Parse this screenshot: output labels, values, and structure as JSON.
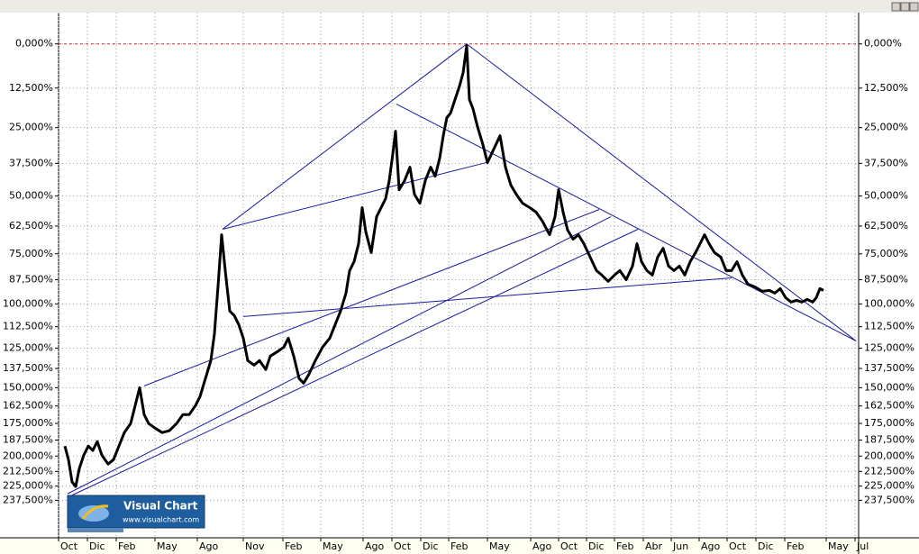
{
  "chart_data": {
    "type": "line",
    "log_y": true,
    "grid": true,
    "ylim": [
      -8,
      273
    ],
    "yticks": [
      {
        "value": 0,
        "label": "0,000%"
      },
      {
        "value": 12.5,
        "label": "12,500%"
      },
      {
        "value": 25,
        "label": "25,000%"
      },
      {
        "value": 37.5,
        "label": "37,500%"
      },
      {
        "value": 50,
        "label": "50,000%"
      },
      {
        "value": 62.5,
        "label": "62,500%"
      },
      {
        "value": 75,
        "label": "75,000%"
      },
      {
        "value": 87.5,
        "label": "87,500%"
      },
      {
        "value": 100,
        "label": "100,000%"
      },
      {
        "value": 112.5,
        "label": "112,500%"
      },
      {
        "value": 125,
        "label": "125,000%"
      },
      {
        "value": 137.5,
        "label": "137,500%"
      },
      {
        "value": 150,
        "label": "150,000%"
      },
      {
        "value": 162.5,
        "label": "162,500%"
      },
      {
        "value": 175,
        "label": "175,000%"
      },
      {
        "value": 187.5,
        "label": "187,500%"
      },
      {
        "value": 200,
        "label": "200,000%"
      },
      {
        "value": 212.5,
        "label": "212,500%"
      },
      {
        "value": 225,
        "label": "225,000%"
      },
      {
        "value": 237.5,
        "label": "237,500%"
      }
    ],
    "xlim": [
      0,
      888
    ],
    "xticks": [
      {
        "value": 0,
        "label": "Oct"
      },
      {
        "value": 32,
        "label": "Dic"
      },
      {
        "value": 64,
        "label": "Feb"
      },
      {
        "value": 107,
        "label": "May"
      },
      {
        "value": 154,
        "label": "Ago"
      },
      {
        "value": 205,
        "label": "Nov"
      },
      {
        "value": 249,
        "label": "Feb"
      },
      {
        "value": 291,
        "label": "May"
      },
      {
        "value": 338,
        "label": "Ago"
      },
      {
        "value": 370,
        "label": "Oct"
      },
      {
        "value": 402,
        "label": "Dic"
      },
      {
        "value": 433,
        "label": "Feb"
      },
      {
        "value": 476,
        "label": "May"
      },
      {
        "value": 524,
        "label": "Ago"
      },
      {
        "value": 555,
        "label": "Oct"
      },
      {
        "value": 586,
        "label": "Dic"
      },
      {
        "value": 617,
        "label": "Feb"
      },
      {
        "value": 649,
        "label": "Abr"
      },
      {
        "value": 680,
        "label": "Jun"
      },
      {
        "value": 711,
        "label": "Ago"
      },
      {
        "value": 742,
        "label": "Oct"
      },
      {
        "value": 774,
        "label": "Dic"
      },
      {
        "value": 806,
        "label": "Feb"
      },
      {
        "value": 852,
        "label": "May"
      },
      {
        "value": 884,
        "label": "Jul"
      }
    ],
    "reference_line": {
      "value": 0,
      "color": "#e03030"
    },
    "series": [
      {
        "color": "#000000",
        "x": [
          7,
          11,
          15,
          19,
          23,
          28,
          33,
          38,
          43,
          48,
          55,
          61,
          67,
          73,
          80,
          85,
          90,
          95,
          100,
          107,
          115,
          123,
          131,
          138,
          145,
          152,
          157,
          163,
          169,
          173,
          177,
          181,
          185,
          190,
          195,
          200,
          205,
          210,
          217,
          223,
          230,
          235,
          243,
          250,
          255,
          261,
          267,
          272,
          278,
          285,
          293,
          301,
          307,
          313,
          319,
          323,
          328,
          333,
          337,
          341,
          347,
          353,
          358,
          363,
          367,
          371,
          374,
          378,
          384,
          390,
          395,
          401,
          407,
          413,
          418,
          423,
          427,
          431,
          435,
          440,
          445,
          449,
          453,
          456,
          460,
          465,
          471,
          476,
          483,
          490,
          496,
          502,
          508,
          515,
          523,
          530,
          537,
          545,
          551,
          555,
          560,
          565,
          571,
          577,
          583,
          590,
          597,
          603,
          610,
          617,
          623,
          630,
          637,
          642,
          647,
          653,
          659,
          665,
          671,
          677,
          683,
          689,
          695,
          701,
          707,
          713,
          717,
          722,
          728,
          735,
          741,
          747,
          753,
          759,
          765,
          773,
          781,
          789,
          795,
          801,
          807,
          813,
          819,
          825,
          831,
          837,
          841,
          845,
          849
        ],
        "values": [
          192.1,
          202.8,
          221.5,
          225.4,
          210.2,
          199.2,
          192.1,
          195.6,
          188.6,
          199.2,
          206.5,
          202.8,
          192.1,
          181.8,
          175.1,
          162.2,
          150.0,
          168.6,
          175.1,
          178.4,
          181.8,
          180.4,
          175.1,
          168.6,
          168.6,
          162.2,
          156.0,
          144.0,
          132.6,
          116.5,
          90.7,
          66.3,
          83.0,
          103.8,
          106.3,
          111.3,
          119.1,
          132.6,
          135.4,
          132.6,
          138.2,
          129.8,
          127.1,
          124.4,
          119.1,
          129.8,
          144.0,
          147.0,
          141.1,
          132.6,
          124.4,
          119.1,
          111.3,
          103.8,
          94.3,
          83.0,
          78.7,
          70.3,
          54.7,
          65.0,
          74.4,
          58.5,
          54.7,
          51.1,
          44.0,
          34.0,
          26.2,
          47.5,
          44.0,
          38.9,
          49.3,
          52.9,
          44.0,
          38.9,
          42.3,
          35.6,
          27.7,
          21.7,
          20.3,
          16.0,
          11.9,
          8.0,
          0.5,
          16.0,
          18.9,
          24.7,
          30.8,
          37.2,
          32.4,
          27.7,
          38.9,
          45.7,
          49.3,
          52.9,
          54.7,
          56.6,
          60.4,
          66.3,
          58.5,
          47.5,
          56.6,
          64.3,
          68.3,
          66.3,
          70.3,
          76.5,
          83.0,
          85.2,
          88.3,
          85.2,
          83.0,
          87.5,
          80.8,
          70.3,
          78.7,
          83.0,
          85.2,
          76.5,
          72.4,
          80.8,
          83.0,
          80.8,
          85.2,
          78.7,
          74.4,
          69.5,
          66.3,
          70.3,
          74.4,
          76.5,
          83.0,
          83.0,
          78.7,
          85.2,
          89.7,
          91.1,
          93.4,
          92.9,
          94.3,
          92.0,
          96.7,
          99.0,
          98.1,
          99.0,
          97.6,
          99.0,
          96.7,
          92.0,
          92.9
        ]
      }
    ],
    "trendlines": [
      {
        "x": [
          182,
          453
        ],
        "values": [
          63.9,
          0
        ]
      },
      {
        "x": [
          453,
          885
        ],
        "values": [
          0,
          120.7
        ]
      },
      {
        "x": [
          182,
          475
        ],
        "values": [
          63.9,
          37.2
        ]
      },
      {
        "x": [
          375,
          885
        ],
        "values": [
          17.4,
          120.7
        ]
      },
      {
        "x": [
          95,
          600
        ],
        "values": [
          148.8,
          55.5
        ]
      },
      {
        "x": [
          10,
          613
        ],
        "values": [
          231.7,
          58.5
        ]
      },
      {
        "x": [
          10,
          643
        ],
        "values": [
          234.9,
          63.9
        ]
      },
      {
        "x": [
          205,
          747
        ],
        "values": [
          106.8,
          86.6
        ]
      }
    ],
    "trendline_color": "#1a1aa0",
    "logo": {
      "title": "Visual Chart",
      "url": "www.visualchart.com"
    }
  }
}
